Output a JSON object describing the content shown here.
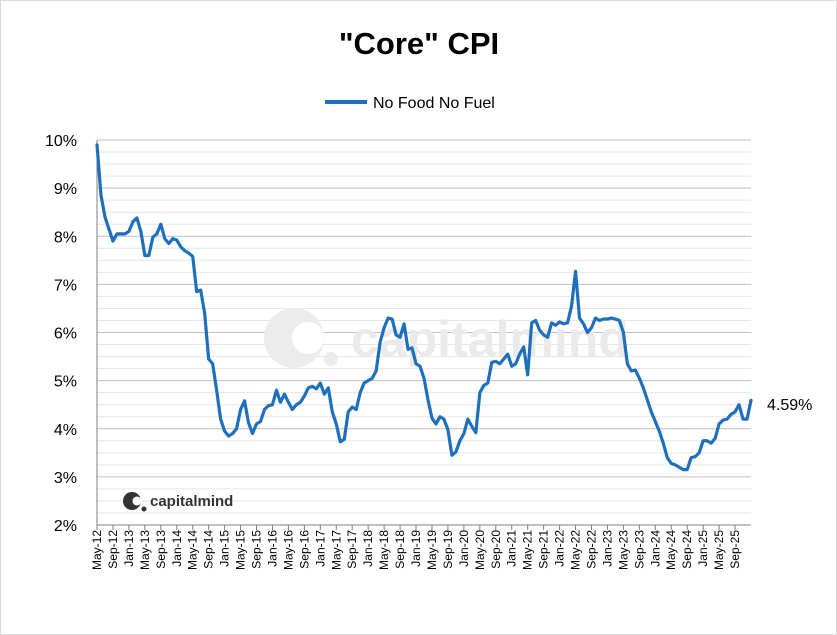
{
  "chart_data": {
    "type": "line",
    "title": "\"Core\" CPI",
    "legend": "No Food No Fuel",
    "legend_position": "top-center",
    "x_tick_labels": [
      "May-12",
      "Sep-12",
      "Jan-13",
      "May-13",
      "Sep-13",
      "Jan-14",
      "May-14",
      "Sep-14",
      "Jan-15",
      "May-15",
      "Sep-15",
      "Jan-16",
      "May-16",
      "Sep-16",
      "Jan-17",
      "May-17",
      "Sep-17",
      "Jan-18",
      "May-18",
      "Sep-18",
      "Jan-19",
      "May-19",
      "Sep-19",
      "Jan-20",
      "May-20",
      "Sep-20",
      "Jan-21",
      "May-21",
      "Sep-21",
      "Jan-22",
      "May-22",
      "Sep-22",
      "Jan-23",
      "May-23",
      "Sep-23",
      "Jan-24",
      "May-24",
      "Sep-24",
      "Jan-25",
      "May-25",
      "Sep-25"
    ],
    "y_tick_labels": [
      "2%",
      "3%",
      "4%",
      "5%",
      "6%",
      "7%",
      "8%",
      "9%",
      "10%"
    ],
    "ylim": [
      2,
      10
    ],
    "y_major_step": 1,
    "y_minor_step": 0.25,
    "grid": true,
    "series": [
      {
        "name": "No Food No Fuel",
        "color": "#1f6fbf",
        "start": "May-12",
        "frequency": "monthly",
        "values": [
          9.9,
          8.85,
          8.4,
          8.15,
          7.9,
          8.05,
          8.05,
          8.05,
          8.1,
          8.3,
          8.38,
          8.1,
          7.6,
          7.6,
          7.98,
          8.05,
          8.25,
          7.95,
          7.85,
          7.95,
          7.92,
          7.78,
          7.7,
          7.65,
          7.58,
          6.85,
          6.88,
          6.4,
          5.45,
          5.35,
          4.8,
          4.2,
          3.95,
          3.85,
          3.9,
          4.0,
          4.4,
          4.58,
          4.12,
          3.9,
          4.1,
          4.15,
          4.4,
          4.48,
          4.5,
          4.8,
          4.55,
          4.72,
          4.55,
          4.4,
          4.5,
          4.55,
          4.68,
          4.85,
          4.88,
          4.83,
          4.95,
          4.72,
          4.85,
          4.35,
          4.1,
          3.73,
          3.78,
          4.35,
          4.45,
          4.4,
          4.75,
          4.95,
          5.0,
          5.05,
          5.2,
          5.8,
          6.1,
          6.3,
          6.28,
          5.95,
          5.9,
          6.18,
          5.65,
          5.68,
          5.35,
          5.3,
          5.05,
          4.6,
          4.22,
          4.1,
          4.25,
          4.2,
          3.98,
          3.45,
          3.52,
          3.75,
          3.9,
          4.2,
          4.05,
          3.92,
          4.75,
          4.9,
          4.95,
          5.38,
          5.4,
          5.35,
          5.45,
          5.55,
          5.3,
          5.35,
          5.55,
          5.7,
          5.12,
          6.2,
          6.25,
          6.05,
          5.95,
          5.9,
          6.2,
          6.15,
          6.22,
          6.18,
          6.2,
          6.55,
          7.27,
          6.3,
          6.18,
          6.0,
          6.1,
          6.3,
          6.25,
          6.28,
          6.28,
          6.3,
          6.28,
          6.25,
          6.0,
          5.35,
          5.2,
          5.22,
          5.05,
          4.85,
          4.6,
          4.35,
          4.15,
          3.95,
          3.7,
          3.4,
          3.28,
          3.25,
          3.2,
          3.15,
          3.15,
          3.4,
          3.42,
          3.5,
          3.75,
          3.75,
          3.7,
          3.8,
          4.1,
          4.18,
          4.2,
          4.3,
          4.35,
          4.5,
          4.2,
          4.2,
          4.59
        ]
      }
    ],
    "end_label": "4.59%"
  },
  "watermark": {
    "brand": "capitalmind",
    "brand_ghost": "capitalmind"
  }
}
